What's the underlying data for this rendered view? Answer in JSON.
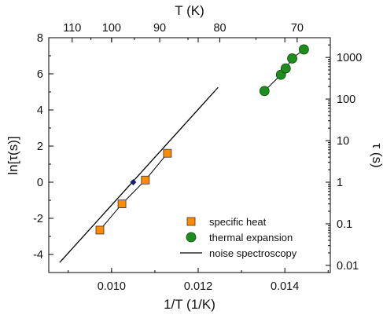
{
  "chart_data": {
    "type": "scatter",
    "x_label": "1/T (1/K)",
    "y_label_left": "ln[τ(s)]",
    "y_label_right": "τ (s)",
    "x2_label": "T (K)",
    "xlim": [
      0.00855,
      0.01505
    ],
    "ylim": [
      -5,
      8
    ],
    "x_ticks": [
      {
        "value": 0.01,
        "label": "0.010"
      },
      {
        "value": 0.012,
        "label": "0.012"
      },
      {
        "value": 0.014,
        "label": "0.014"
      }
    ],
    "y_ticks": [
      {
        "value": -4,
        "label": "-4"
      },
      {
        "value": -2,
        "label": "-2"
      },
      {
        "value": 0,
        "label": "0"
      },
      {
        "value": 2,
        "label": "2"
      },
      {
        "value": 4,
        "label": "4"
      },
      {
        "value": 6,
        "label": "6"
      },
      {
        "value": 8,
        "label": "8"
      }
    ],
    "top_ticks": [
      {
        "value": 110,
        "label": "110"
      },
      {
        "value": 100,
        "label": "100"
      },
      {
        "value": 90,
        "label": "90"
      },
      {
        "value": 80,
        "label": "80"
      },
      {
        "value": 70,
        "label": "70"
      }
    ],
    "right_ticks": [
      {
        "value": 0.01,
        "label": "0.01"
      },
      {
        "value": 0.1,
        "label": "0.1"
      },
      {
        "value": 1,
        "label": "1"
      },
      {
        "value": 10,
        "label": "10"
      },
      {
        "value": 100,
        "label": "100"
      },
      {
        "value": 1000,
        "label": "1000"
      }
    ],
    "series": [
      {
        "name": "specific heat",
        "marker": "square",
        "color": "#ff8c00",
        "x": [
          0.00973,
          0.01024,
          0.01078,
          0.01129
        ],
        "y": [
          -2.65,
          -1.2,
          0.12,
          1.6
        ],
        "connect": true
      },
      {
        "name": "thermal expansion",
        "marker": "circle",
        "color": "#1e8c1e",
        "x": [
          0.01353,
          0.01391,
          0.01402,
          0.01417,
          0.01444
        ],
        "y": [
          5.05,
          5.95,
          6.3,
          6.85,
          7.35
        ],
        "connect": true
      },
      {
        "name": "noise spectroscopy",
        "marker": "line",
        "color": "#000000",
        "x": [
          0.0088,
          0.01246
        ],
        "y": [
          -4.45,
          5.25
        ]
      },
      {
        "marker": "diamond",
        "color": "#1a1a6e",
        "x": [
          0.0105
        ],
        "y": [
          0.0
        ]
      }
    ],
    "legend_position": "bottom-right"
  }
}
